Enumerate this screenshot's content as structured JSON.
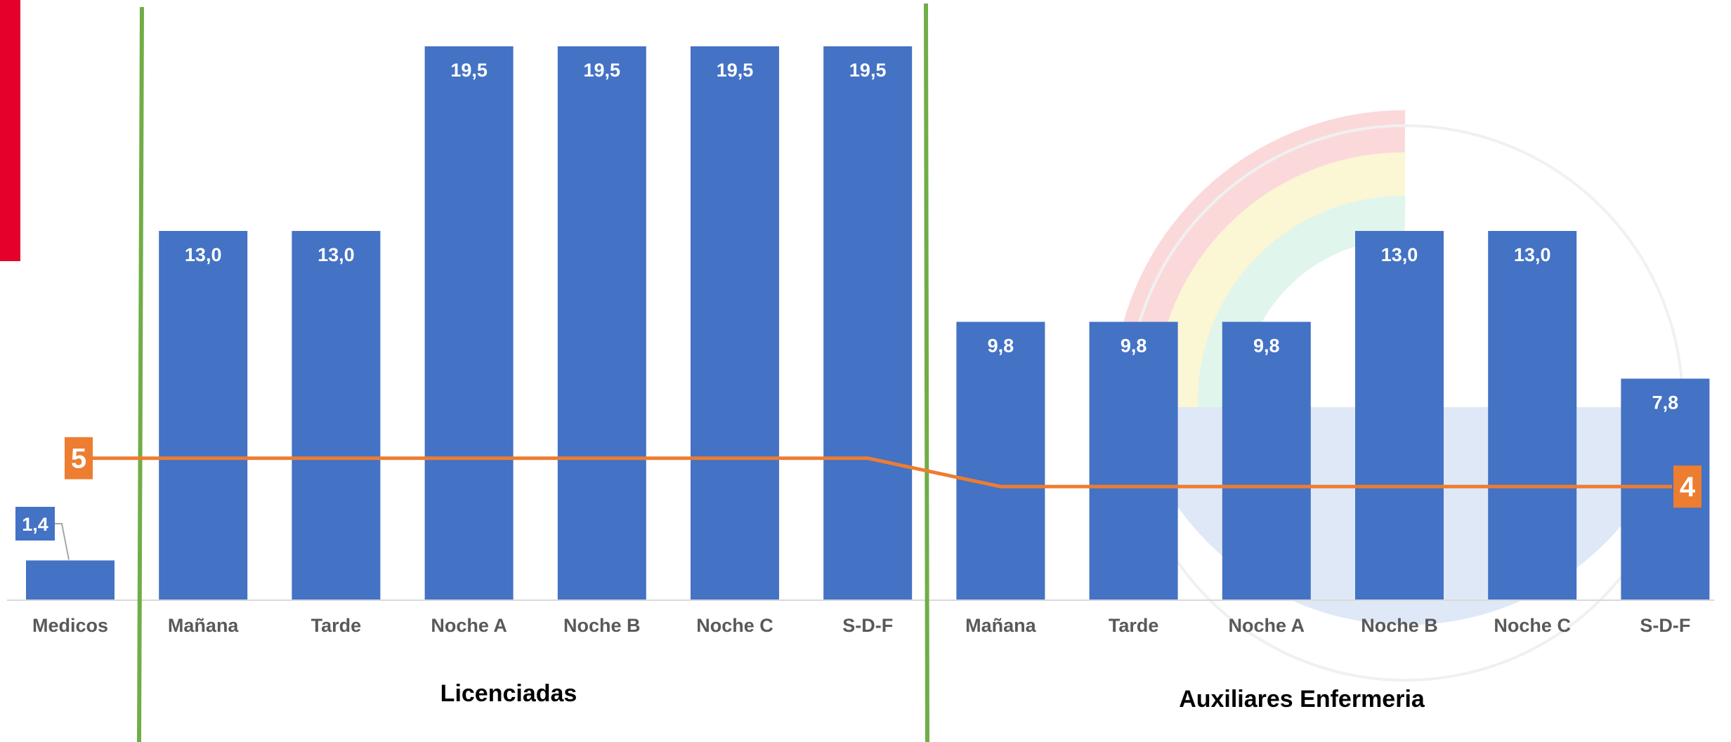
{
  "chart_data": {
    "type": "bar",
    "categories": [
      "Medicos",
      "Mañana",
      "Tarde",
      "Noche A",
      "Noche B",
      "Noche C",
      "S-D-F",
      "Mañana",
      "Tarde",
      "Noche A",
      "Noche B",
      "Noche C",
      "S-D-F"
    ],
    "groups": [
      {
        "label": "",
        "categories": [
          0
        ]
      },
      {
        "label": "Licenciadas",
        "categories": [
          1,
          2,
          3,
          4,
          5,
          6
        ]
      },
      {
        "label": "Auxiliares Enfermeria",
        "categories": [
          7,
          8,
          9,
          10,
          11,
          12
        ]
      }
    ],
    "series": [
      {
        "type": "bar",
        "color": "#4472C4",
        "values": [
          1.4,
          13.0,
          13.0,
          19.5,
          19.5,
          19.5,
          19.5,
          9.8,
          9.8,
          9.8,
          13.0,
          13.0,
          7.8
        ],
        "labels": [
          "1,4",
          "13,0",
          "13,0",
          "19,5",
          "19,5",
          "19,5",
          "19,5",
          "9,8",
          "9,8",
          "9,8",
          "13,0",
          "13,0",
          "7,8"
        ]
      },
      {
        "type": "line",
        "color": "#ED7D31",
        "values": [
          5,
          5,
          5,
          5,
          5,
          5,
          5,
          4,
          4,
          4,
          4,
          4,
          4
        ],
        "start_label": "5",
        "end_label": "4"
      }
    ],
    "ylim": [
      0,
      20
    ],
    "title": "",
    "xlabel": "",
    "ylabel": ""
  },
  "colors": {
    "bar": "#4472C4",
    "line": "#ED7D31",
    "divider": "#70AD47",
    "accent_left": "#E4002B",
    "axis": "#D9D9D9"
  }
}
